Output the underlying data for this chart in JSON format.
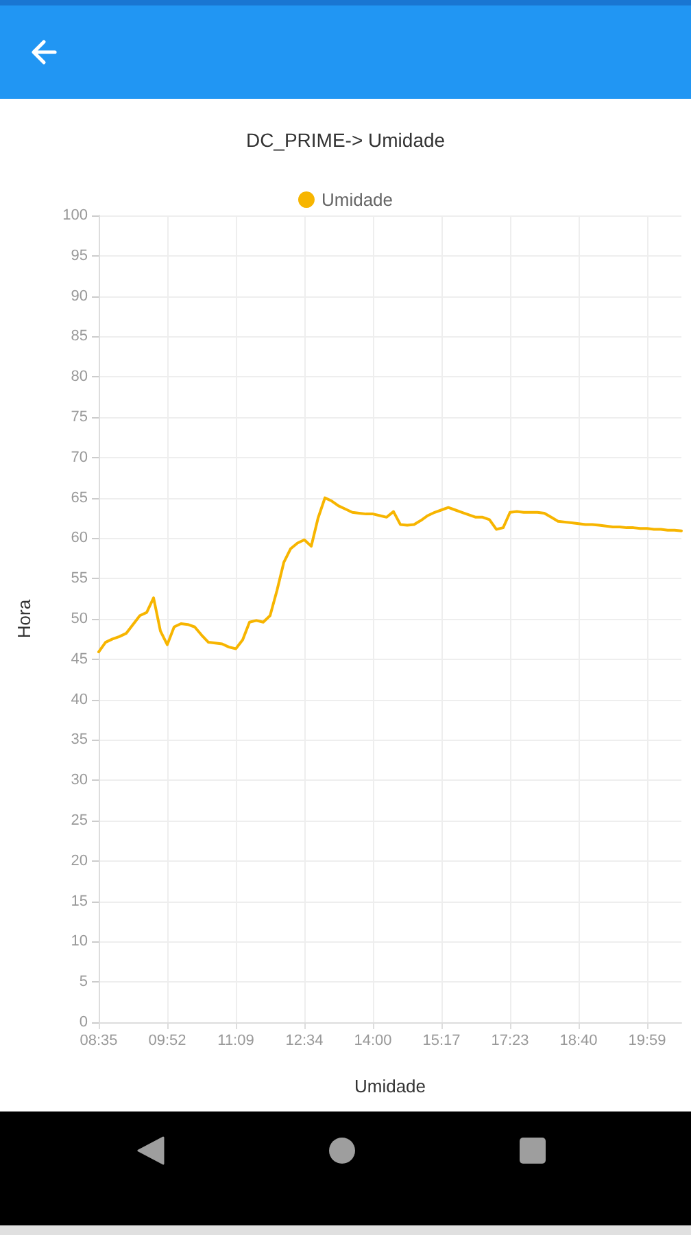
{
  "chart_data": {
    "type": "line",
    "title": "DC_PRIME-> Umidade",
    "xlabel": "Umidade",
    "ylabel": "Hora",
    "categories": [
      "08:35",
      null,
      null,
      null,
      null,
      null,
      null,
      null,
      null,
      null,
      "09:52",
      null,
      null,
      null,
      null,
      null,
      null,
      null,
      null,
      null,
      "11:09",
      null,
      null,
      null,
      null,
      null,
      null,
      null,
      null,
      null,
      "12:34",
      null,
      null,
      null,
      null,
      null,
      null,
      null,
      null,
      null,
      "14:00",
      null,
      null,
      null,
      null,
      null,
      null,
      null,
      null,
      null,
      "15:17",
      null,
      null,
      null,
      null,
      null,
      null,
      null,
      null,
      null,
      "17:23",
      null,
      null,
      null,
      null,
      null,
      null,
      null,
      null,
      null,
      "18:40",
      null,
      null,
      null,
      null,
      null,
      null,
      null,
      null,
      null,
      "19:59",
      null,
      null,
      null,
      null,
      null
    ],
    "series": [
      {
        "name": "Umidade",
        "color": "#f7b500",
        "values": [
          45.9,
          47.1,
          47.5,
          47.8,
          48.2,
          49.3,
          50.4,
          50.8,
          52.6,
          48.5,
          46.8,
          49.0,
          49.4,
          49.3,
          49.0,
          48.0,
          47.1,
          47.0,
          46.9,
          46.5,
          46.3,
          47.4,
          49.6,
          49.8,
          49.6,
          50.4,
          53.5,
          57.0,
          58.7,
          59.4,
          59.8,
          59.0,
          62.5,
          65.0,
          64.6,
          64.0,
          63.6,
          63.2,
          63.1,
          63.0,
          63.0,
          62.8,
          62.6,
          63.3,
          61.7,
          61.6,
          61.7,
          62.2,
          62.8,
          63.2,
          63.5,
          63.8,
          63.5,
          63.2,
          62.9,
          62.6,
          62.6,
          62.3,
          61.1,
          61.3,
          63.2,
          63.3,
          63.2,
          63.2,
          63.2,
          63.1,
          62.6,
          62.1,
          62.0,
          61.9,
          61.8,
          61.7,
          61.7,
          61.6,
          61.5,
          61.4,
          61.4,
          61.3,
          61.3,
          61.2,
          61.2,
          61.1,
          61.1,
          61.0,
          61.0,
          60.9
        ]
      }
    ],
    "ylim": [
      0,
      100
    ],
    "yticks": [
      0,
      5,
      10,
      15,
      20,
      25,
      30,
      35,
      40,
      45,
      50,
      55,
      60,
      65,
      70,
      75,
      80,
      85,
      90,
      95,
      100
    ],
    "grid": true,
    "legend": "top",
    "marker": "none",
    "line_style": "solid"
  }
}
